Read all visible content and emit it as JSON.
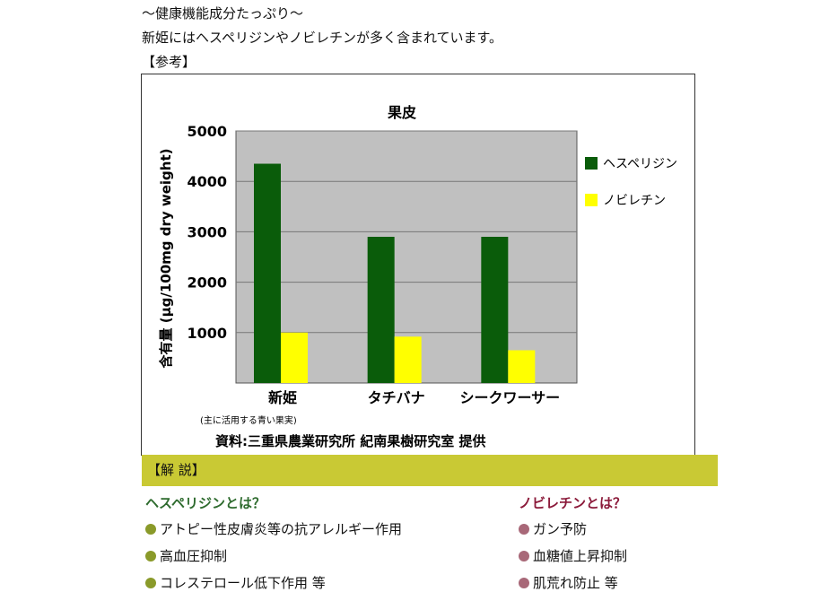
{
  "intro": {
    "line1": "〜健康機能成分たっぷり〜",
    "line2": "新姫にはヘスペリジンやノビレチンが多く含まれています。",
    "line3": "【参考】"
  },
  "chart_data": {
    "type": "bar",
    "title": "果皮",
    "ylabel": "含有量 (μg/100mg dry weight)",
    "categories": [
      "新姫",
      "タチバナ",
      "シークワーサー"
    ],
    "category_note": "(主に活用する青い果実)",
    "series": [
      {
        "name": "ヘスペリジン",
        "color": "#0a5c0a",
        "values": [
          4350,
          2900,
          2900
        ]
      },
      {
        "name": "ノビレチン",
        "color": "#ffff00",
        "values": [
          1000,
          920,
          650
        ]
      }
    ],
    "ylim": [
      0,
      5000
    ],
    "yticks": [
      "1000",
      "2000",
      "3000",
      "4000",
      "5000"
    ],
    "plot_bg": "#c0c0c0",
    "grid": true,
    "legend_position": "right",
    "source": "資料:三重県農業研究所 紀南果樹研究室 提供"
  },
  "commentary": {
    "band_label": "【解 説】",
    "left_title": "ヘスペリジンとは？",
    "left_title_color": "#2e6b2e",
    "left_dot_color": "#8a9a2a",
    "left_items": [
      "アトピー性皮膚炎等の抗アレルギー作用",
      "高血圧抑制",
      "コレステロール低下作用 等"
    ],
    "right_title": "ノビレチンとは？",
    "right_title_color": "#8b1a3a",
    "right_dot_color": "#a86878",
    "right_items": [
      "ガン予防",
      "血糖値上昇抑制",
      "肌荒れ防止 等"
    ]
  }
}
